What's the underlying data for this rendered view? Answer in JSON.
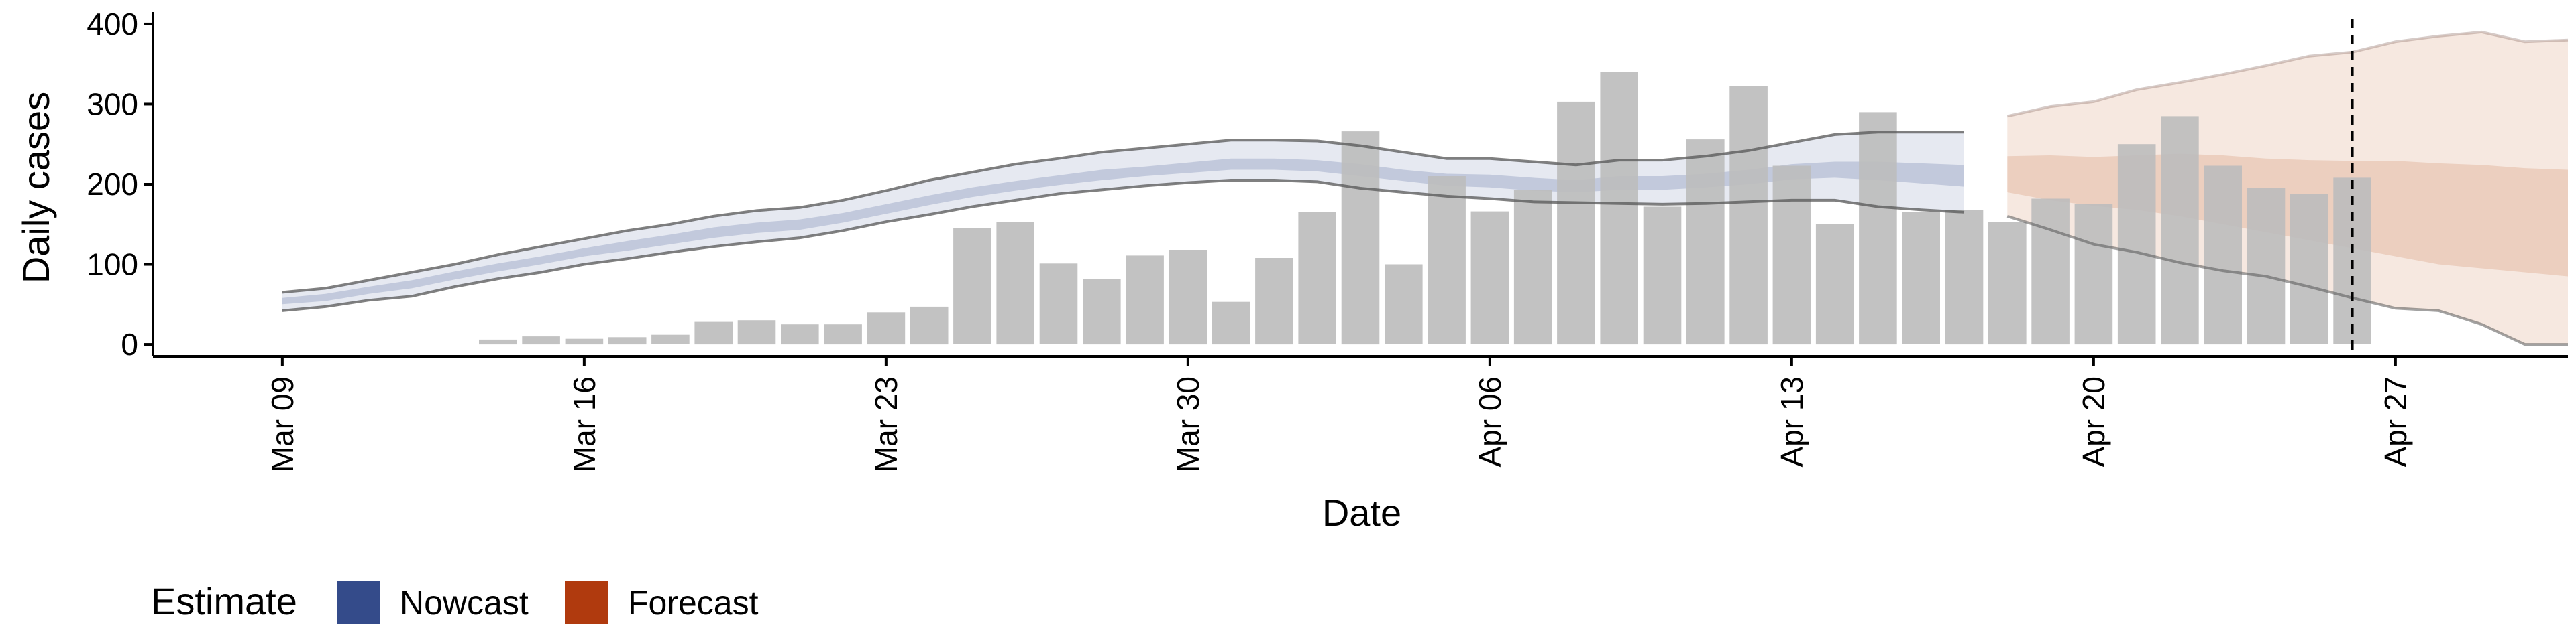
{
  "chart_data": {
    "type": "bar",
    "xlabel": "Date",
    "ylabel": "Daily cases",
    "ylim": [
      -15,
      415
    ],
    "y_ticks": [
      0,
      100,
      200,
      300,
      400
    ],
    "x_ticks": [
      "Mar 09",
      "Mar 16",
      "Mar 23",
      "Mar 30",
      "Apr 06",
      "Apr 13",
      "Apr 20",
      "Apr 27"
    ],
    "x_range": [
      "2020-03-06",
      "2020-05-01"
    ],
    "forecast_date": "2020-04-26",
    "grid": false,
    "legend": {
      "position": "bottom-left",
      "title": "Estimate",
      "items": [
        {
          "label": "Nowcast",
          "color": "#344B8A"
        },
        {
          "label": "Forecast",
          "color": "#B03A0E"
        }
      ]
    },
    "bars": {
      "color": "#BDBDBD",
      "dates": [
        "2020-03-14",
        "2020-03-15",
        "2020-03-16",
        "2020-03-17",
        "2020-03-18",
        "2020-03-19",
        "2020-03-20",
        "2020-03-21",
        "2020-03-22",
        "2020-03-23",
        "2020-03-24",
        "2020-03-25",
        "2020-03-26",
        "2020-03-27",
        "2020-03-28",
        "2020-03-29",
        "2020-03-30",
        "2020-03-31",
        "2020-04-01",
        "2020-04-02",
        "2020-04-03",
        "2020-04-04",
        "2020-04-05",
        "2020-04-06",
        "2020-04-07",
        "2020-04-08",
        "2020-04-09",
        "2020-04-10",
        "2020-04-11",
        "2020-04-12",
        "2020-04-13",
        "2020-04-14",
        "2020-04-15",
        "2020-04-16",
        "2020-04-17",
        "2020-04-18",
        "2020-04-19",
        "2020-04-20",
        "2020-04-21",
        "2020-04-22",
        "2020-04-23",
        "2020-04-24",
        "2020-04-25",
        "2020-04-26"
      ],
      "values": [
        6,
        10,
        7,
        9,
        12,
        28,
        30,
        25,
        25,
        40,
        47,
        145,
        153,
        101,
        82,
        111,
        118,
        53,
        108,
        165,
        266,
        100,
        210,
        166,
        193,
        303,
        340,
        172,
        256,
        323,
        223,
        150,
        290,
        165,
        168,
        153,
        182,
        175,
        250,
        285,
        223,
        195,
        188,
        208
      ]
    },
    "nowcast": {
      "color": "#344B8A",
      "dates": [
        "2020-03-09",
        "2020-03-10",
        "2020-03-11",
        "2020-03-12",
        "2020-03-13",
        "2020-03-14",
        "2020-03-15",
        "2020-03-16",
        "2020-03-17",
        "2020-03-18",
        "2020-03-19",
        "2020-03-20",
        "2020-03-21",
        "2020-03-22",
        "2020-03-23",
        "2020-03-24",
        "2020-03-25",
        "2020-03-26",
        "2020-03-27",
        "2020-03-28",
        "2020-03-29",
        "2020-03-30",
        "2020-03-31",
        "2020-04-01",
        "2020-04-02",
        "2020-04-03",
        "2020-04-04",
        "2020-04-05",
        "2020-04-06",
        "2020-04-07",
        "2020-04-08",
        "2020-04-09",
        "2020-04-10",
        "2020-04-11",
        "2020-04-12",
        "2020-04-13",
        "2020-04-14",
        "2020-04-15",
        "2020-04-16",
        "2020-04-17"
      ],
      "outer_upper": [
        65,
        70,
        80,
        90,
        100,
        112,
        122,
        132,
        142,
        150,
        160,
        167,
        171,
        180,
        192,
        205,
        215,
        225,
        232,
        240,
        245,
        250,
        255,
        255,
        254,
        248,
        240,
        232,
        232,
        228,
        224,
        230,
        230,
        235,
        242,
        252,
        262,
        265,
        265,
        265
      ],
      "outer_lower": [
        42,
        47,
        55,
        60,
        72,
        82,
        90,
        100,
        107,
        115,
        122,
        128,
        133,
        142,
        153,
        162,
        172,
        180,
        188,
        193,
        198,
        202,
        205,
        205,
        203,
        195,
        190,
        185,
        182,
        178,
        177,
        176,
        175,
        176,
        178,
        180,
        180,
        172,
        168,
        165
      ],
      "inner_upper": [
        58,
        63,
        72,
        80,
        91,
        101,
        110,
        120,
        129,
        137,
        146,
        152,
        156,
        164,
        175,
        186,
        196,
        204,
        211,
        218,
        222,
        227,
        232,
        232,
        230,
        225,
        218,
        213,
        212,
        208,
        205,
        210,
        210,
        213,
        218,
        225,
        228,
        228,
        226,
        224
      ],
      "inner_lower": [
        50,
        54,
        63,
        70,
        81,
        91,
        100,
        110,
        117,
        125,
        133,
        139,
        143,
        152,
        163,
        174,
        184,
        192,
        199,
        205,
        210,
        214,
        218,
        218,
        216,
        210,
        204,
        198,
        196,
        192,
        190,
        193,
        193,
        196,
        200,
        206,
        208,
        205,
        201,
        197
      ]
    },
    "forecast": {
      "color": "#B03A0E",
      "dates": [
        "2020-04-18",
        "2020-04-19",
        "2020-04-20",
        "2020-04-21",
        "2020-04-22",
        "2020-04-23",
        "2020-04-24",
        "2020-04-25",
        "2020-04-26",
        "2020-04-27",
        "2020-04-28",
        "2020-04-29",
        "2020-04-30",
        "2020-05-01"
      ],
      "outer_upper": [
        285,
        297,
        303,
        318,
        327,
        337,
        348,
        360,
        365,
        378,
        385,
        390,
        378,
        380
      ],
      "outer_lower": [
        160,
        143,
        125,
        115,
        102,
        92,
        85,
        72,
        58,
        45,
        42,
        25,
        0,
        0
      ],
      "inner_upper": [
        235,
        236,
        234,
        236,
        238,
        236,
        232,
        230,
        229,
        229,
        226,
        224,
        220,
        218
      ],
      "inner_lower": [
        190,
        180,
        173,
        168,
        160,
        150,
        140,
        130,
        120,
        110,
        100,
        95,
        90,
        85
      ]
    }
  }
}
